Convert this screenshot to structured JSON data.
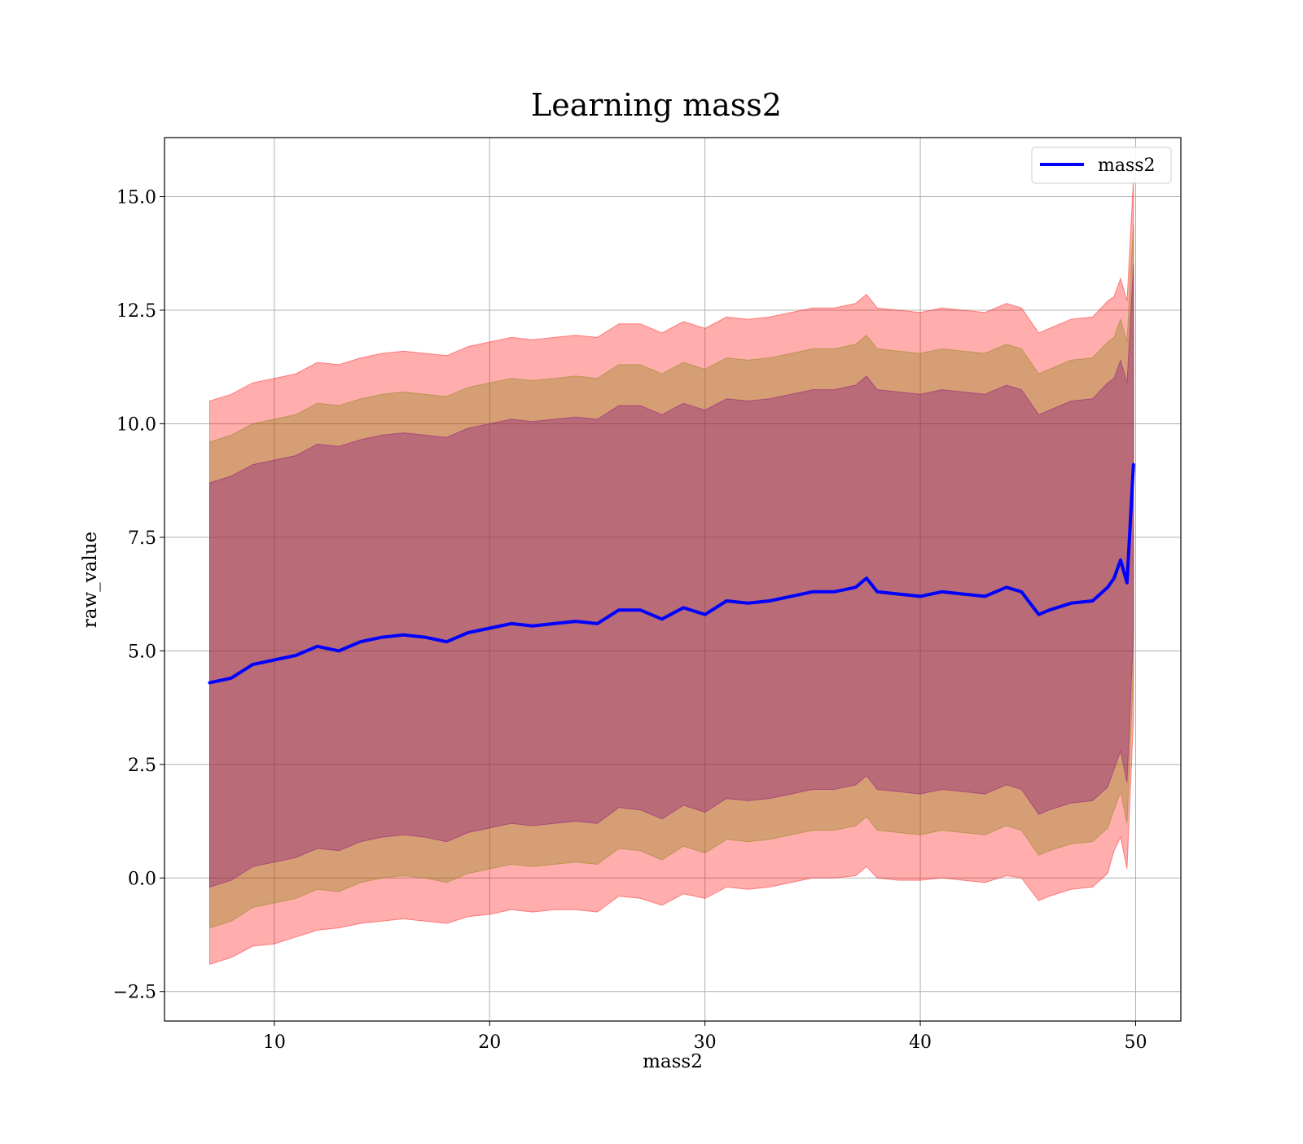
{
  "chart_data": {
    "type": "line",
    "title": "Learning mass2",
    "xlabel": "mass2",
    "ylabel": "raw_value",
    "xlim": [
      4.9,
      52.1
    ],
    "ylim": [
      -3.15,
      16.3
    ],
    "x_ticks": [
      10,
      20,
      30,
      40,
      50
    ],
    "x_tick_labels": [
      "10",
      "20",
      "30",
      "40",
      "50"
    ],
    "y_ticks": [
      -2.5,
      0.0,
      2.5,
      5.0,
      7.5,
      10.0,
      12.5,
      15.0
    ],
    "y_tick_labels": [
      "−2.5",
      "0.0",
      "2.5",
      "5.0",
      "7.5",
      "10.0",
      "12.5",
      "15.0"
    ],
    "grid": true,
    "legend_position": "top-right",
    "series": [
      {
        "name": "mass2",
        "color": "#0000ff",
        "x": [
          7.0,
          8.0,
          9.0,
          10.0,
          11.0,
          12.0,
          13.0,
          14.0,
          15.0,
          16.0,
          17.0,
          18.0,
          19.0,
          20.0,
          21.0,
          22.0,
          23.0,
          24.0,
          25.0,
          26.0,
          27.0,
          28.0,
          29.0,
          30.0,
          31.0,
          32.0,
          33.0,
          34.0,
          35.0,
          36.0,
          37.0,
          37.5,
          38.0,
          39.0,
          40.0,
          41.0,
          42.0,
          43.0,
          44.0,
          44.7,
          45.5,
          46.0,
          47.0,
          48.0,
          48.7,
          49.0,
          49.3,
          49.6,
          49.9
        ],
        "y": [
          4.3,
          4.4,
          4.7,
          4.8,
          4.9,
          5.1,
          5.0,
          5.2,
          5.3,
          5.35,
          5.3,
          5.2,
          5.4,
          5.5,
          5.6,
          5.55,
          5.6,
          5.65,
          5.6,
          5.9,
          5.9,
          5.7,
          5.95,
          5.8,
          6.1,
          6.05,
          6.1,
          6.2,
          6.3,
          6.3,
          6.4,
          6.6,
          6.3,
          6.25,
          6.2,
          6.3,
          6.25,
          6.2,
          6.4,
          6.3,
          5.8,
          5.9,
          6.05,
          6.1,
          6.4,
          6.6,
          7.0,
          6.5,
          9.1
        ]
      }
    ],
    "bands": [
      {
        "color": "#ff0000",
        "alpha": 0.32,
        "x": [
          7.0,
          8.0,
          9.0,
          10.0,
          11.0,
          12.0,
          13.0,
          14.0,
          15.0,
          16.0,
          17.0,
          18.0,
          19.0,
          20.0,
          21.0,
          22.0,
          23.0,
          24.0,
          25.0,
          26.0,
          27.0,
          28.0,
          29.0,
          30.0,
          31.0,
          32.0,
          33.0,
          34.0,
          35.0,
          36.0,
          37.0,
          37.5,
          38.0,
          39.0,
          40.0,
          41.0,
          42.0,
          43.0,
          44.0,
          44.7,
          45.5,
          46.0,
          47.0,
          48.0,
          48.7,
          49.0,
          49.3,
          49.6,
          49.9
        ],
        "lower": [
          -1.9,
          -1.75,
          -1.5,
          -1.45,
          -1.3,
          -1.15,
          -1.1,
          -1.0,
          -0.95,
          -0.9,
          -0.95,
          -1.0,
          -0.85,
          -0.8,
          -0.7,
          -0.75,
          -0.7,
          -0.7,
          -0.75,
          -0.4,
          -0.45,
          -0.6,
          -0.35,
          -0.45,
          -0.2,
          -0.25,
          -0.2,
          -0.1,
          0.0,
          0.0,
          0.05,
          0.25,
          0.0,
          -0.05,
          -0.05,
          0.0,
          -0.05,
          -0.1,
          0.05,
          0.0,
          -0.5,
          -0.4,
          -0.25,
          -0.2,
          0.1,
          0.6,
          0.9,
          0.2,
          3.5
        ],
        "upper": [
          10.5,
          10.65,
          10.9,
          11.0,
          11.1,
          11.35,
          11.3,
          11.45,
          11.55,
          11.6,
          11.55,
          11.5,
          11.7,
          11.8,
          11.9,
          11.85,
          11.9,
          11.95,
          11.9,
          12.2,
          12.2,
          12.0,
          12.25,
          12.1,
          12.35,
          12.3,
          12.35,
          12.45,
          12.55,
          12.55,
          12.65,
          12.85,
          12.55,
          12.5,
          12.45,
          12.55,
          12.5,
          12.45,
          12.65,
          12.55,
          12.0,
          12.1,
          12.3,
          12.35,
          12.7,
          12.8,
          13.2,
          12.7,
          15.4
        ]
      },
      {
        "color": "#808000",
        "alpha": 0.32,
        "x": [
          7.0,
          8.0,
          9.0,
          10.0,
          11.0,
          12.0,
          13.0,
          14.0,
          15.0,
          16.0,
          17.0,
          18.0,
          19.0,
          20.0,
          21.0,
          22.0,
          23.0,
          24.0,
          25.0,
          26.0,
          27.0,
          28.0,
          29.0,
          30.0,
          31.0,
          32.0,
          33.0,
          34.0,
          35.0,
          36.0,
          37.0,
          37.5,
          38.0,
          39.0,
          40.0,
          41.0,
          42.0,
          43.0,
          44.0,
          44.7,
          45.5,
          46.0,
          47.0,
          48.0,
          48.7,
          49.0,
          49.3,
          49.6,
          49.9
        ],
        "lower": [
          -1.1,
          -0.95,
          -0.65,
          -0.55,
          -0.45,
          -0.25,
          -0.3,
          -0.1,
          0.0,
          0.05,
          0.0,
          -0.1,
          0.1,
          0.2,
          0.3,
          0.25,
          0.3,
          0.35,
          0.3,
          0.65,
          0.6,
          0.4,
          0.7,
          0.55,
          0.85,
          0.8,
          0.85,
          0.95,
          1.05,
          1.05,
          1.15,
          1.35,
          1.05,
          1.0,
          0.95,
          1.05,
          1.0,
          0.95,
          1.15,
          1.05,
          0.5,
          0.6,
          0.75,
          0.8,
          1.1,
          1.5,
          1.9,
          1.2,
          4.5
        ],
        "upper": [
          9.6,
          9.75,
          10.0,
          10.1,
          10.2,
          10.45,
          10.4,
          10.55,
          10.65,
          10.7,
          10.65,
          10.6,
          10.8,
          10.9,
          11.0,
          10.95,
          11.0,
          11.05,
          11.0,
          11.3,
          11.3,
          11.1,
          11.35,
          11.2,
          11.45,
          11.4,
          11.45,
          11.55,
          11.65,
          11.65,
          11.75,
          11.95,
          11.65,
          11.6,
          11.55,
          11.65,
          11.6,
          11.55,
          11.75,
          11.65,
          11.1,
          11.2,
          11.4,
          11.45,
          11.8,
          11.9,
          12.3,
          11.8,
          14.4
        ]
      },
      {
        "color": "#800080",
        "alpha": 0.32,
        "x": [
          7.0,
          8.0,
          9.0,
          10.0,
          11.0,
          12.0,
          13.0,
          14.0,
          15.0,
          16.0,
          17.0,
          18.0,
          19.0,
          20.0,
          21.0,
          22.0,
          23.0,
          24.0,
          25.0,
          26.0,
          27.0,
          28.0,
          29.0,
          30.0,
          31.0,
          32.0,
          33.0,
          34.0,
          35.0,
          36.0,
          37.0,
          37.5,
          38.0,
          39.0,
          40.0,
          41.0,
          42.0,
          43.0,
          44.0,
          44.7,
          45.5,
          46.0,
          47.0,
          48.0,
          48.7,
          49.0,
          49.3,
          49.6,
          49.9
        ],
        "lower": [
          -0.2,
          -0.05,
          0.25,
          0.35,
          0.45,
          0.65,
          0.6,
          0.8,
          0.9,
          0.95,
          0.9,
          0.8,
          1.0,
          1.1,
          1.2,
          1.15,
          1.2,
          1.25,
          1.2,
          1.55,
          1.5,
          1.3,
          1.6,
          1.45,
          1.75,
          1.7,
          1.75,
          1.85,
          1.95,
          1.95,
          2.05,
          2.25,
          1.95,
          1.9,
          1.85,
          1.95,
          1.9,
          1.85,
          2.05,
          1.95,
          1.4,
          1.5,
          1.65,
          1.7,
          2.0,
          2.4,
          2.8,
          2.1,
          5.4
        ],
        "upper": [
          8.7,
          8.85,
          9.1,
          9.2,
          9.3,
          9.55,
          9.5,
          9.65,
          9.75,
          9.8,
          9.75,
          9.7,
          9.9,
          10.0,
          10.1,
          10.05,
          10.1,
          10.15,
          10.1,
          10.4,
          10.4,
          10.2,
          10.45,
          10.3,
          10.55,
          10.5,
          10.55,
          10.65,
          10.75,
          10.75,
          10.85,
          11.05,
          10.75,
          10.7,
          10.65,
          10.75,
          10.7,
          10.65,
          10.85,
          10.75,
          10.2,
          10.3,
          10.5,
          10.55,
          10.9,
          11.0,
          11.4,
          10.9,
          13.5
        ]
      }
    ]
  }
}
